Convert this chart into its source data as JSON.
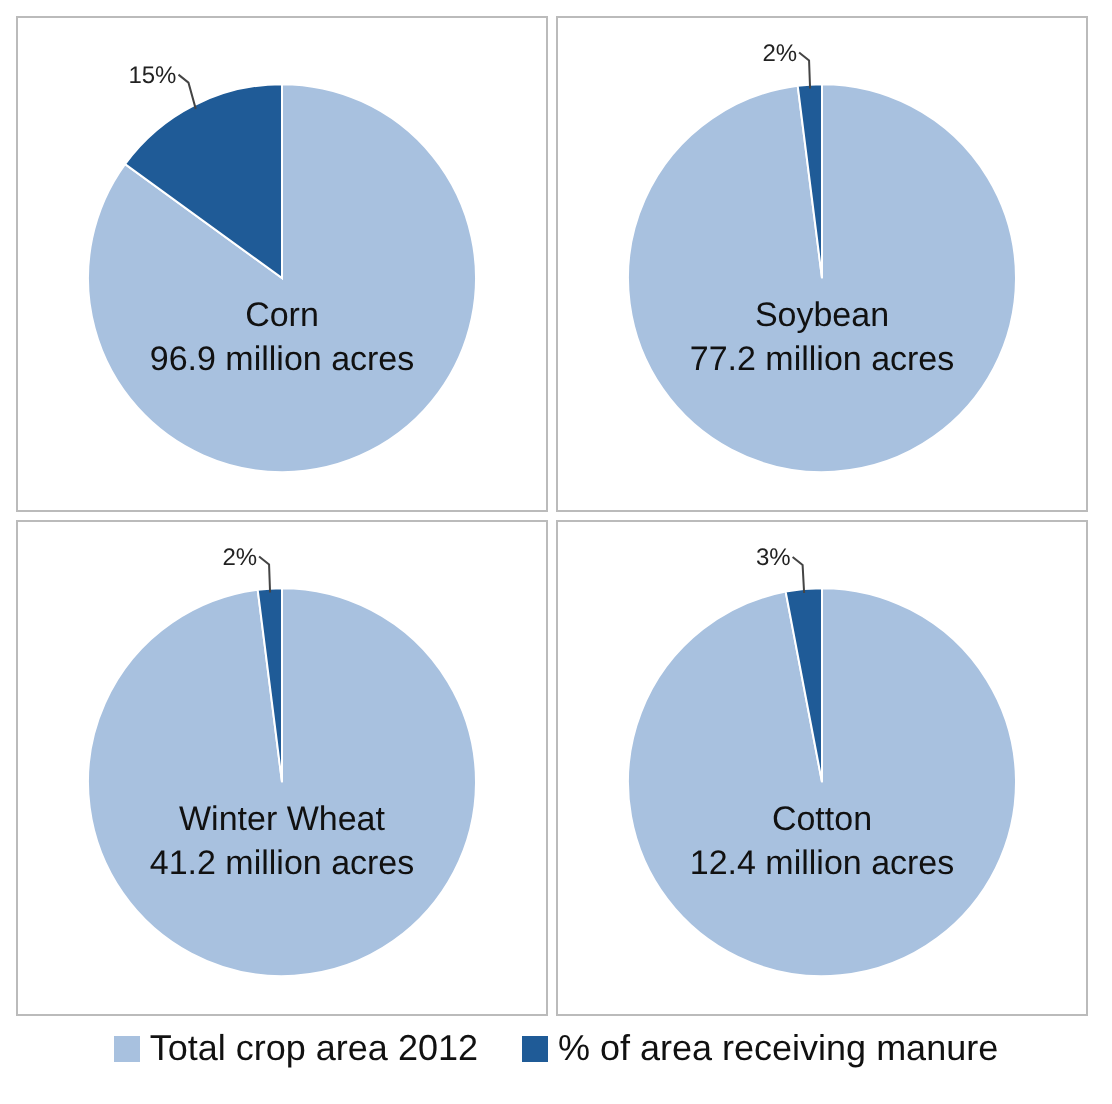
{
  "chart_data": [
    {
      "type": "pie",
      "categories": [
        "Total crop area 2012",
        "% of area receiving manure"
      ],
      "values": [
        85,
        15
      ],
      "colors": [
        "#a8c1df",
        "#1f5b97"
      ],
      "value_labels": [
        null,
        "15%"
      ],
      "annotations": [
        "Corn",
        "96.9 million acres"
      ],
      "legend": "bottom"
    },
    {
      "type": "pie",
      "categories": [
        null,
        null
      ],
      "values": [
        98,
        2
      ],
      "colors": [
        "#a8c1df",
        "#1f5b97"
      ],
      "value_labels": [
        null,
        "2%"
      ],
      "annotations": [
        "Soybean",
        "77.2 million acres"
      ]
    },
    {
      "type": "pie",
      "categories": [
        null,
        null
      ],
      "values": [
        98,
        2
      ],
      "colors": [
        "#a8c1df",
        "#1f5b97"
      ],
      "value_labels": [
        null,
        "2%"
      ],
      "annotations": [
        "Winter Wheat",
        "41.2 million acres"
      ]
    },
    {
      "type": "pie",
      "categories": [
        null,
        null
      ],
      "values": [
        97,
        3
      ],
      "colors": [
        "#a8c1df",
        "#1f5b97"
      ],
      "value_labels": [
        null,
        "3%"
      ],
      "annotations": [
        "Cotton",
        "12.4 million acres"
      ]
    }
  ]
}
